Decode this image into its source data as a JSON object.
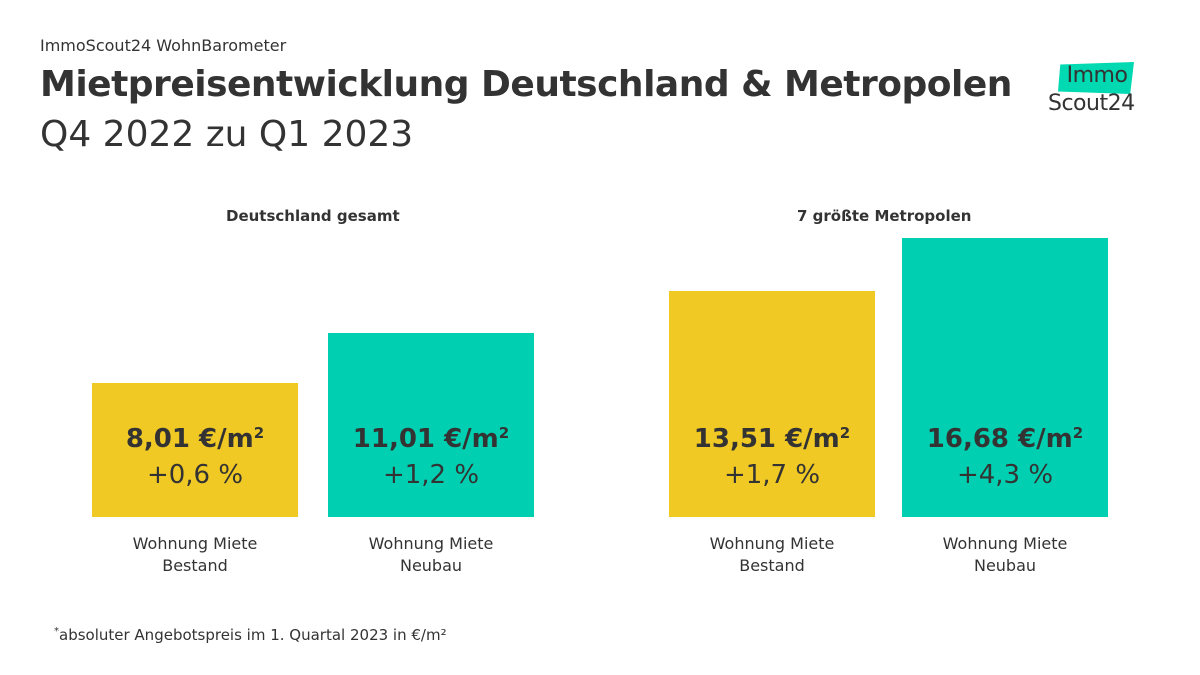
{
  "header": {
    "kicker": "ImmoScout24 WohnBarometer",
    "title": "Mietpreisentwicklung Deutschland & Metropolen",
    "subtitle": "Q4 2022 zu Q1 2023"
  },
  "logo": {
    "top": "Immo",
    "bottom": "Scout24",
    "accent_color": "#00d9b1"
  },
  "colors": {
    "bestand": "#f0c924",
    "neubau": "#00d0b1",
    "text": "#333333"
  },
  "chart_data": {
    "type": "bar",
    "title": "Mietpreisentwicklung Deutschland & Metropolen",
    "subtitle": "Q4 2022 zu Q1 2023",
    "unit": "€/m²",
    "groups": [
      {
        "name": "Deutschland gesamt",
        "bars": [
          {
            "category_line1": "Wohnung Miete",
            "category_line2": "Bestand",
            "value": 8.01,
            "value_label": "8,01 €/m",
            "change": "+0,6 %",
            "color_key": "bestand"
          },
          {
            "category_line1": "Wohnung Miete",
            "category_line2": "Neubau",
            "value": 11.01,
            "value_label": "11,01 €/m",
            "change": "+1,2 %",
            "color_key": "neubau"
          }
        ]
      },
      {
        "name": "7 größte Metropolen",
        "bars": [
          {
            "category_line1": "Wohnung Miete",
            "category_line2": "Bestand",
            "value": 13.51,
            "value_label": "13,51 €/m",
            "change": "+1,7 %",
            "color_key": "bestand"
          },
          {
            "category_line1": "Wohnung Miete",
            "category_line2": "Neubau",
            "value": 16.68,
            "value_label": "16,68 €/m",
            "change": "+4,3 %",
            "color_key": "neubau"
          }
        ]
      }
    ],
    "unit_superscript": "2"
  },
  "footnote": {
    "marker": "*",
    "text": "absoluter Angebotspreis im 1. Quartal 2023 in €/m²"
  }
}
